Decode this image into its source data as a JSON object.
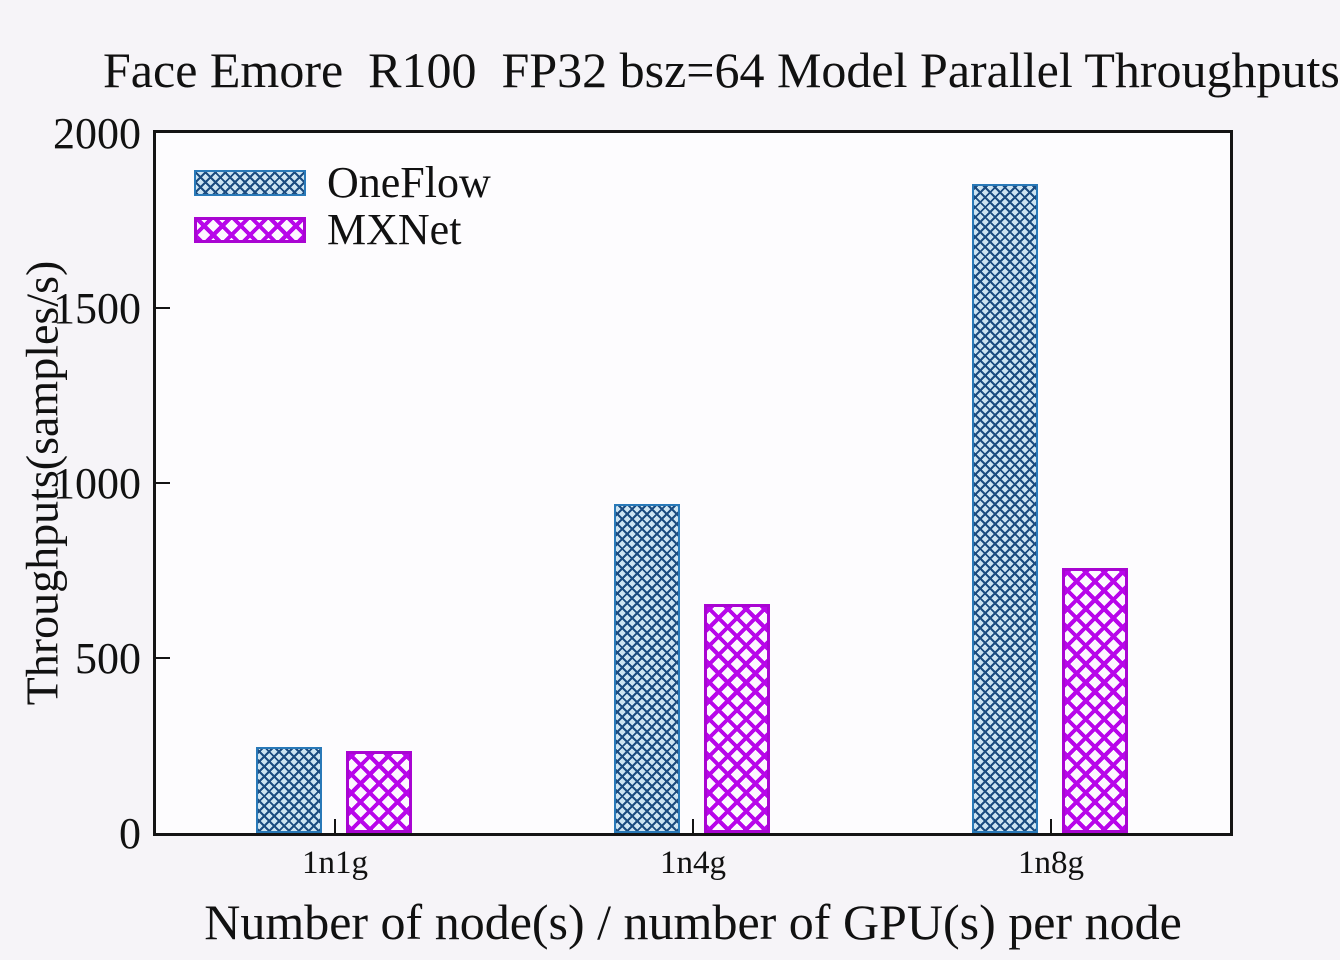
{
  "chart_data": {
    "type": "bar",
    "title": "Face Emore  R100  FP32 bsz=64 Model Parallel Throughputs",
    "xlabel": "Number of node(s) / number of GPU(s) per node",
    "ylabel": "Throughputs(samples/s)",
    "categories": [
      "1n1g",
      "1n4g",
      "1n8g"
    ],
    "series": [
      {
        "name": "OneFlow",
        "values": [
          245,
          940,
          1855
        ],
        "hatch": "fine-crosshatch",
        "line_color": "#1c4c80",
        "fill_color": "#cde4f2",
        "border_color": "#2979b8"
      },
      {
        "name": "MXNet",
        "values": [
          235,
          655,
          758
        ],
        "hatch": "coarse-crosshatch",
        "line_color": "#b806ea",
        "fill_color": "#fdf8ff",
        "border_color": "#a905d2"
      }
    ],
    "ylim": [
      0,
      2000
    ],
    "yticks": [
      0,
      500,
      1000,
      1500,
      2000
    ],
    "grid": false,
    "legend_position": "top-left",
    "axis_color": "#141414",
    "background_color": "#f6f4f8"
  }
}
